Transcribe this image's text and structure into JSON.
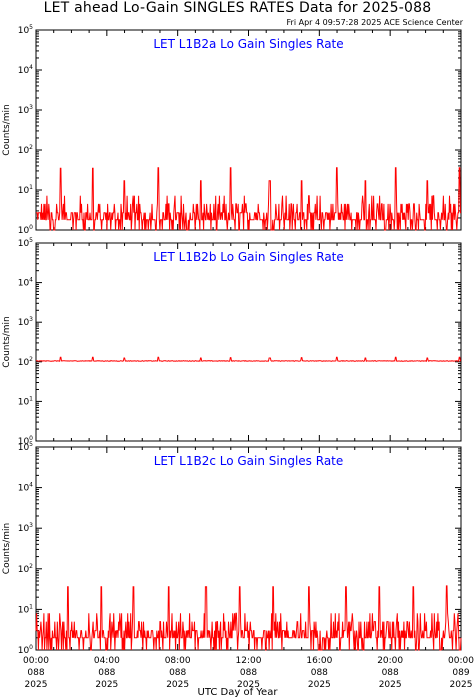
{
  "header": {
    "title": "LET ahead Lo-Gain SINGLES RATES Data for 2025-088",
    "timestamp": "Fri Apr  4 09:57:28 2025 ACE Science Center"
  },
  "colors": {
    "trace": "#ff0000",
    "panel_title": "#0000ff",
    "axes": "#000000"
  },
  "chart_data": {
    "type": "line",
    "xlabel": "UTC Day of Year",
    "ylabel": "Counts/min",
    "yscale": "log",
    "ylim": [
      1,
      100000
    ],
    "xlim_hours": [
      0,
      24
    ],
    "y_ticks": [
      {
        "value": 1,
        "base": "10",
        "exp": "0"
      },
      {
        "value": 10,
        "base": "10",
        "exp": "1"
      },
      {
        "value": 100,
        "base": "10",
        "exp": "2"
      },
      {
        "value": 1000,
        "base": "10",
        "exp": "3"
      },
      {
        "value": 10000,
        "base": "10",
        "exp": "4"
      },
      {
        "value": 100000,
        "base": "10",
        "exp": "5"
      }
    ],
    "x_ticks": [
      {
        "hour": 0,
        "time": "00:00",
        "doy": "088",
        "year": "2025"
      },
      {
        "hour": 4,
        "time": "04:00",
        "doy": "088",
        "year": "2025"
      },
      {
        "hour": 8,
        "time": "08:00",
        "doy": "088",
        "year": "2025"
      },
      {
        "hour": 12,
        "time": "12:00",
        "doy": "088",
        "year": "2025"
      },
      {
        "hour": 16,
        "time": "16:00",
        "doy": "088",
        "year": "2025"
      },
      {
        "hour": 20,
        "time": "20:00",
        "doy": "088",
        "year": "2025"
      },
      {
        "hour": 24,
        "time": "00:00",
        "doy": "089",
        "year": "2025"
      }
    ],
    "panels": [
      {
        "title": "LET L1B2a Lo Gain Singles Rate",
        "series": {
          "baseline": 1.8,
          "spike_hours": [
            1.4,
            3.2,
            5.0,
            6.9,
            9.3,
            11.0,
            13.2,
            15.0,
            17.0,
            18.6,
            20.3,
            22.1,
            23.9
          ],
          "spike_values": [
            35,
            35,
            17,
            36,
            17,
            36,
            17,
            17,
            36,
            17,
            36,
            17,
            36
          ]
        }
      },
      {
        "title": "LET L1B2b Lo Gain Singles Rate",
        "series": {
          "baseline": 105,
          "spike_hours": [
            1.4,
            3.2,
            5.0,
            6.9,
            9.3,
            11.0,
            13.2,
            15.0,
            17.0,
            18.6,
            20.3,
            22.1,
            23.9
          ],
          "spike_values": [
            130,
            130,
            125,
            130,
            125,
            128,
            125,
            128,
            130,
            125,
            130,
            125,
            130
          ]
        }
      },
      {
        "title": "LET L1B2c Lo Gain Singles Rate",
        "series": {
          "baseline": 2.0,
          "spike_hours": [
            1.8,
            3.7,
            5.5,
            7.5,
            9.6,
            11.5,
            13.4,
            15.4,
            17.5,
            19.4,
            21.3,
            23.2
          ],
          "spike_values": [
            36,
            36,
            36,
            36,
            36,
            36,
            36,
            36,
            36,
            36,
            36,
            38
          ]
        }
      }
    ]
  }
}
